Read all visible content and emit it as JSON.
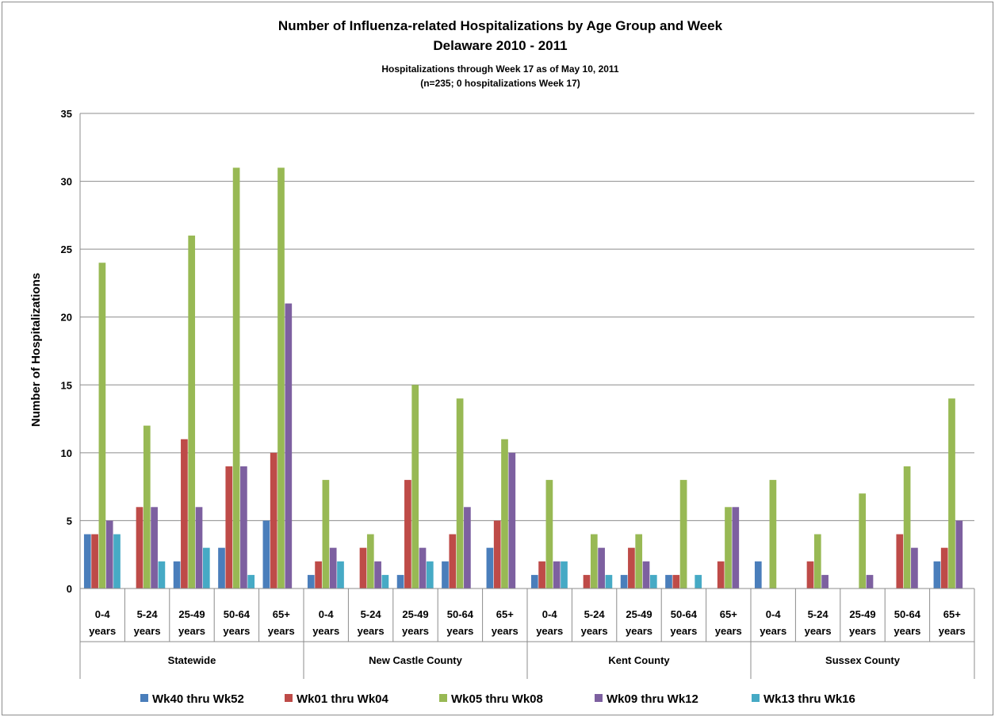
{
  "chart_data": {
    "type": "bar",
    "title": "Number of Influenza-related Hospitalizations by Age Group and Week",
    "title_line2": "Delaware 2010 - 2011",
    "subtitle": "Hospitalizations  through  Week 17 as of May 10, 2011",
    "subtitle_line2": "(n=235; 0 hospitalizations  Week 17)",
    "xlabel": "",
    "ylabel": "Number of Hospitalizations",
    "ylim": [
      0,
      35
    ],
    "yticks": [
      0,
      5,
      10,
      15,
      20,
      25,
      30,
      35
    ],
    "grid": true,
    "legend_position": "bottom",
    "groups": [
      "Statewide",
      "New Castle County",
      "Kent County",
      "Sussex County"
    ],
    "age_groups": [
      {
        "line1": "0-4",
        "line2": "years"
      },
      {
        "line1": "5-24",
        "line2": "years"
      },
      {
        "line1": "25-49",
        "line2": "years"
      },
      {
        "line1": "50-64",
        "line2": "years"
      },
      {
        "line1": "65+",
        "line2": "years"
      }
    ],
    "series": [
      {
        "name": "Wk40 thru Wk52",
        "color": "#4A7EBB",
        "values": [
          4,
          0,
          2,
          3,
          5,
          1,
          0,
          1,
          2,
          3,
          1,
          0,
          1,
          1,
          0,
          2,
          0,
          0,
          0,
          2
        ]
      },
      {
        "name": "Wk01 thru Wk04",
        "color": "#BE4B48",
        "values": [
          4,
          6,
          11,
          9,
          10,
          2,
          3,
          8,
          4,
          5,
          2,
          1,
          3,
          1,
          2,
          0,
          2,
          0,
          4,
          3
        ]
      },
      {
        "name": "Wk05 thru Wk08",
        "color": "#98B954",
        "values": [
          24,
          12,
          26,
          31,
          31,
          8,
          4,
          15,
          14,
          11,
          8,
          4,
          4,
          8,
          6,
          8,
          4,
          7,
          9,
          14
        ]
      },
      {
        "name": "Wk09 thru Wk12",
        "color": "#7D60A0",
        "values": [
          5,
          6,
          6,
          9,
          21,
          3,
          2,
          3,
          6,
          10,
          2,
          3,
          2,
          0,
          6,
          0,
          1,
          1,
          3,
          5
        ]
      },
      {
        "name": "Wk13 thru Wk16",
        "color": "#46AAC5",
        "values": [
          4,
          2,
          3,
          1,
          0,
          2,
          1,
          2,
          0,
          0,
          2,
          1,
          1,
          1,
          0,
          0,
          0,
          0,
          0,
          0
        ]
      }
    ]
  }
}
